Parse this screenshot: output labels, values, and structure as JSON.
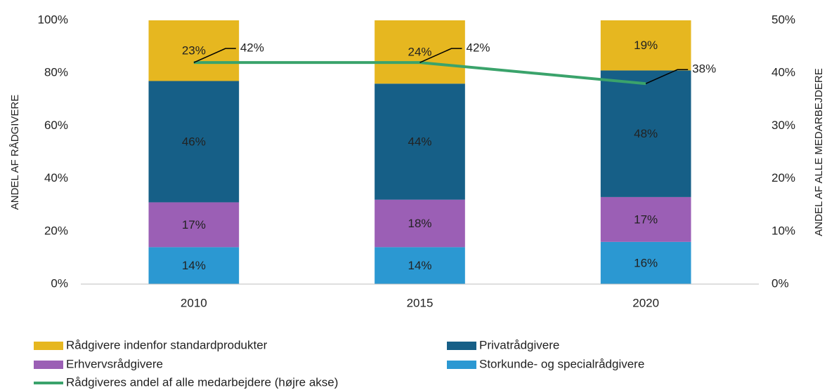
{
  "chart_data": {
    "type": "bar",
    "stacked": true,
    "categories": [
      "2010",
      "2015",
      "2020"
    ],
    "ylabel": "ANDEL AF RÅDGIVERE",
    "y2label": "ANDEL AF ALLE MEDARBEJDERE",
    "ylim": [
      0,
      100
    ],
    "yticks": [
      {
        "value": 0,
        "label": "0%"
      },
      {
        "value": 20,
        "label": "20%"
      },
      {
        "value": 40,
        "label": "40%"
      },
      {
        "value": 60,
        "label": "60%"
      },
      {
        "value": 80,
        "label": "80%"
      },
      {
        "value": 100,
        "label": "100%"
      }
    ],
    "y2lim": [
      0,
      50
    ],
    "y2ticks": [
      {
        "value": 0,
        "label": "0%"
      },
      {
        "value": 10,
        "label": "10%"
      },
      {
        "value": 20,
        "label": "20%"
      },
      {
        "value": 30,
        "label": "30%"
      },
      {
        "value": 40,
        "label": "40%"
      },
      {
        "value": 50,
        "label": "50%"
      }
    ],
    "grid": false,
    "legend": "bottom",
    "series": [
      {
        "name": "Storkunde- og specialrådgivere",
        "color": "#2b98d2",
        "values": [
          14,
          14,
          16
        ],
        "value_labels": [
          "14%",
          "14%",
          "16%"
        ]
      },
      {
        "name": "Erhvervsrådgivere",
        "color": "#9b5fb5",
        "values": [
          17,
          18,
          17
        ],
        "value_labels": [
          "17%",
          "18%",
          "17%"
        ]
      },
      {
        "name": "Privatrådgivere",
        "color": "#165f87",
        "values": [
          46,
          44,
          48
        ],
        "value_labels": [
          "46%",
          "44%",
          "48%"
        ]
      },
      {
        "name": "Rådgivere indenfor standardprodukter",
        "color": "#e6b720",
        "values": [
          23,
          24,
          19
        ],
        "value_labels": [
          "23%",
          "24%",
          "19%"
        ]
      },
      {
        "name": "Rådgiveres andel af alle medarbejdere (højre akse)",
        "color": "#3aa36b",
        "type": "line",
        "axis": "y2",
        "values": [
          42,
          42,
          38
        ],
        "value_labels": [
          "42%",
          "42%",
          "38%"
        ]
      }
    ]
  }
}
